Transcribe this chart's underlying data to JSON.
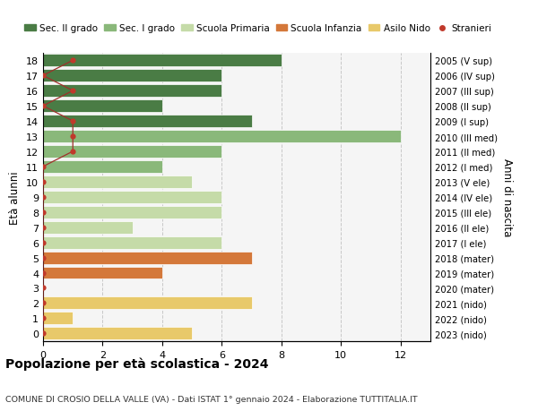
{
  "ages": [
    18,
    17,
    16,
    15,
    14,
    13,
    12,
    11,
    10,
    9,
    8,
    7,
    6,
    5,
    4,
    3,
    2,
    1,
    0
  ],
  "years": [
    "2005 (V sup)",
    "2006 (IV sup)",
    "2007 (III sup)",
    "2008 (II sup)",
    "2009 (I sup)",
    "2010 (III med)",
    "2011 (II med)",
    "2012 (I med)",
    "2013 (V ele)",
    "2014 (IV ele)",
    "2015 (III ele)",
    "2016 (II ele)",
    "2017 (I ele)",
    "2018 (mater)",
    "2019 (mater)",
    "2020 (mater)",
    "2021 (nido)",
    "2022 (nido)",
    "2023 (nido)"
  ],
  "bar_values": [
    8,
    6,
    6,
    4,
    7,
    12,
    6,
    4,
    5,
    6,
    6,
    3,
    6,
    7,
    4,
    0,
    7,
    1,
    5
  ],
  "bar_colors": [
    "#4a7c45",
    "#4a7c45",
    "#4a7c45",
    "#4a7c45",
    "#4a7c45",
    "#8ab87a",
    "#8ab87a",
    "#8ab87a",
    "#c5dba8",
    "#c5dba8",
    "#c5dba8",
    "#c5dba8",
    "#c5dba8",
    "#d4783a",
    "#d4783a",
    "#d4783a",
    "#e8c96a",
    "#e8c96a",
    "#e8c96a"
  ],
  "stranieri_x": [
    1,
    0,
    1,
    0,
    1,
    1,
    1,
    0,
    0,
    0,
    0,
    0,
    0,
    0,
    0,
    0,
    0,
    0,
    0
  ],
  "stranieri_color": "#c0392b",
  "stranieri_line_color": "#a0302b",
  "title": "Popolazione per età scolastica - 2024",
  "subtitle": "COMUNE DI CROSIO DELLA VALLE (VA) - Dati ISTAT 1° gennaio 2024 - Elaborazione TUTTITALIA.IT",
  "ylabel_left": "Età alunni",
  "ylabel_right": "Anni di nascita",
  "xlim": [
    0,
    13
  ],
  "ylim": [
    -0.5,
    18.5
  ],
  "xticks": [
    0,
    2,
    4,
    6,
    8,
    10,
    12
  ],
  "legend_labels": [
    "Sec. II grado",
    "Sec. I grado",
    "Scuola Primaria",
    "Scuola Infanzia",
    "Asilo Nido",
    "Stranieri"
  ],
  "legend_colors": [
    "#4a7c45",
    "#8ab87a",
    "#c5dba8",
    "#d4783a",
    "#e8c96a",
    "#c0392b"
  ],
  "bg_color": "#ffffff",
  "plot_bg_color": "#f5f5f5",
  "grid_color": "#c8c8c8",
  "bar_height": 0.82
}
